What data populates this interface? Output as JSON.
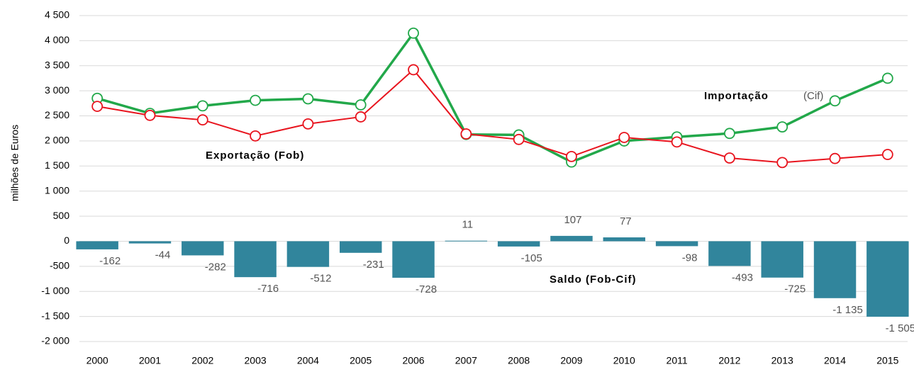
{
  "chart_data": {
    "type": "bar-line",
    "y_label": "milhões de Euros",
    "categories": [
      "2000",
      "2001",
      "2002",
      "2003",
      "2004",
      "2005",
      "2006",
      "2007",
      "2008",
      "2009",
      "2010",
      "2011",
      "2012",
      "2013",
      "2014",
      "2015"
    ],
    "ylim": [
      -2000,
      4500
    ],
    "yticks": [
      {
        "value": -2000,
        "label": "-2 000"
      },
      {
        "value": -1500,
        "label": "-1 500"
      },
      {
        "value": -1000,
        "label": "-1 000"
      },
      -500,
      0,
      500,
      {
        "value": 1000,
        "label": "1 000"
      },
      {
        "value": 1500,
        "label": "1 500"
      },
      {
        "value": 2000,
        "label": "2 000"
      },
      {
        "value": 2500,
        "label": "2 500"
      },
      {
        "value": 3000,
        "label": "3 000"
      },
      {
        "value": 3500,
        "label": "3 500"
      },
      {
        "value": 4000,
        "label": "4 000"
      },
      {
        "value": 4500,
        "label": "4 500"
      }
    ],
    "grid": true,
    "series": [
      {
        "kind": "bar",
        "color": "#31859c",
        "values": [
          -162,
          -44,
          -282,
          -716,
          -512,
          -231,
          -728,
          11,
          -105,
          107,
          77,
          -98,
          -493,
          -725,
          -1135,
          -1505
        ],
        "value_labels": [
          "-162",
          "-44",
          "-282",
          "-716",
          "-512",
          "-231",
          "-728",
          "11",
          "-105",
          "107",
          "77",
          "-98",
          "-493",
          "-725",
          "-1 135",
          "-1 505"
        ]
      },
      {
        "kind": "line",
        "color": "#22a84a",
        "values": [
          2850,
          2550,
          2700,
          2810,
          2840,
          2720,
          4150,
          2130,
          2120,
          1580,
          2000,
          2080,
          2150,
          2280,
          2800,
          3250
        ]
      },
      {
        "kind": "line",
        "color": "#e8141e",
        "values": [
          2690,
          2510,
          2420,
          2100,
          2340,
          2480,
          3420,
          2140,
          2030,
          1690,
          2070,
          1980,
          1660,
          1570,
          1650,
          1730
        ]
      }
    ],
    "annotations": [
      "Importação",
      "(Cif)",
      "Exportação (Fob)",
      "Saldo (Fob-Cif)"
    ]
  }
}
